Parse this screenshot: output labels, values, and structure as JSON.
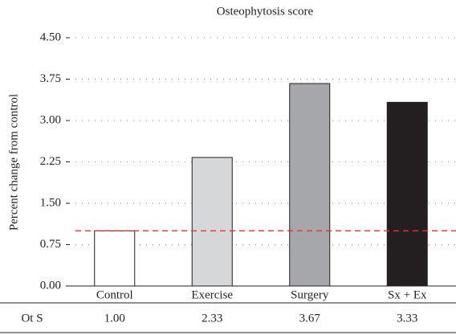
{
  "chart_data": {
    "type": "bar",
    "title": "Osteophytosis score",
    "y_label": "Percent change from control",
    "categories": [
      "Control",
      "Exercise",
      "Surgery",
      "Sx + Ex"
    ],
    "values": [
      1.0,
      2.33,
      3.67,
      3.33
    ],
    "value_labels": [
      "1.00",
      "2.33",
      "3.67",
      "3.33"
    ],
    "colors": [
      "#ffffff",
      "#d5d7d9",
      "#a5a7ab",
      "#231f20"
    ],
    "row_label": "Ot S",
    "ylim": [
      0,
      4.5
    ],
    "yticks": [
      {
        "value": 0,
        "label": "0.00"
      },
      {
        "value": 0.75,
        "label": "0.75"
      },
      {
        "value": 1.5,
        "label": "1.50"
      },
      {
        "value": 2.25,
        "label": "2.25"
      },
      {
        "value": 3,
        "label": "3.00"
      },
      {
        "value": 3.75,
        "label": "3.75"
      },
      {
        "value": 4.5,
        "label": "4.50"
      }
    ],
    "grid": true,
    "reference_line": {
      "value": 1,
      "color": "#e3342f"
    }
  }
}
